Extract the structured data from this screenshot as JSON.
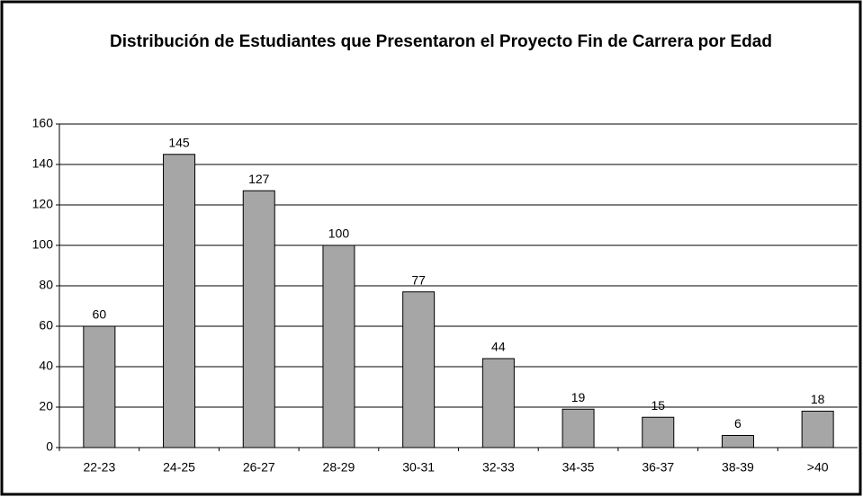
{
  "chart_data": {
    "type": "bar",
    "title": "Distribución de Estudiantes que Presentaron el Proyecto Fin de Carrera por Edad",
    "categories": [
      "22-23",
      "24-25",
      "26-27",
      "28-29",
      "30-31",
      "32-33",
      "34-35",
      "36-37",
      "38-39",
      ">40"
    ],
    "values": [
      60,
      145,
      127,
      100,
      77,
      44,
      19,
      15,
      6,
      18
    ],
    "color": "#a6a6a6",
    "ylim": [
      0,
      160
    ],
    "yticks": [
      0,
      20,
      40,
      60,
      80,
      100,
      120,
      140,
      160
    ],
    "grid": true
  }
}
